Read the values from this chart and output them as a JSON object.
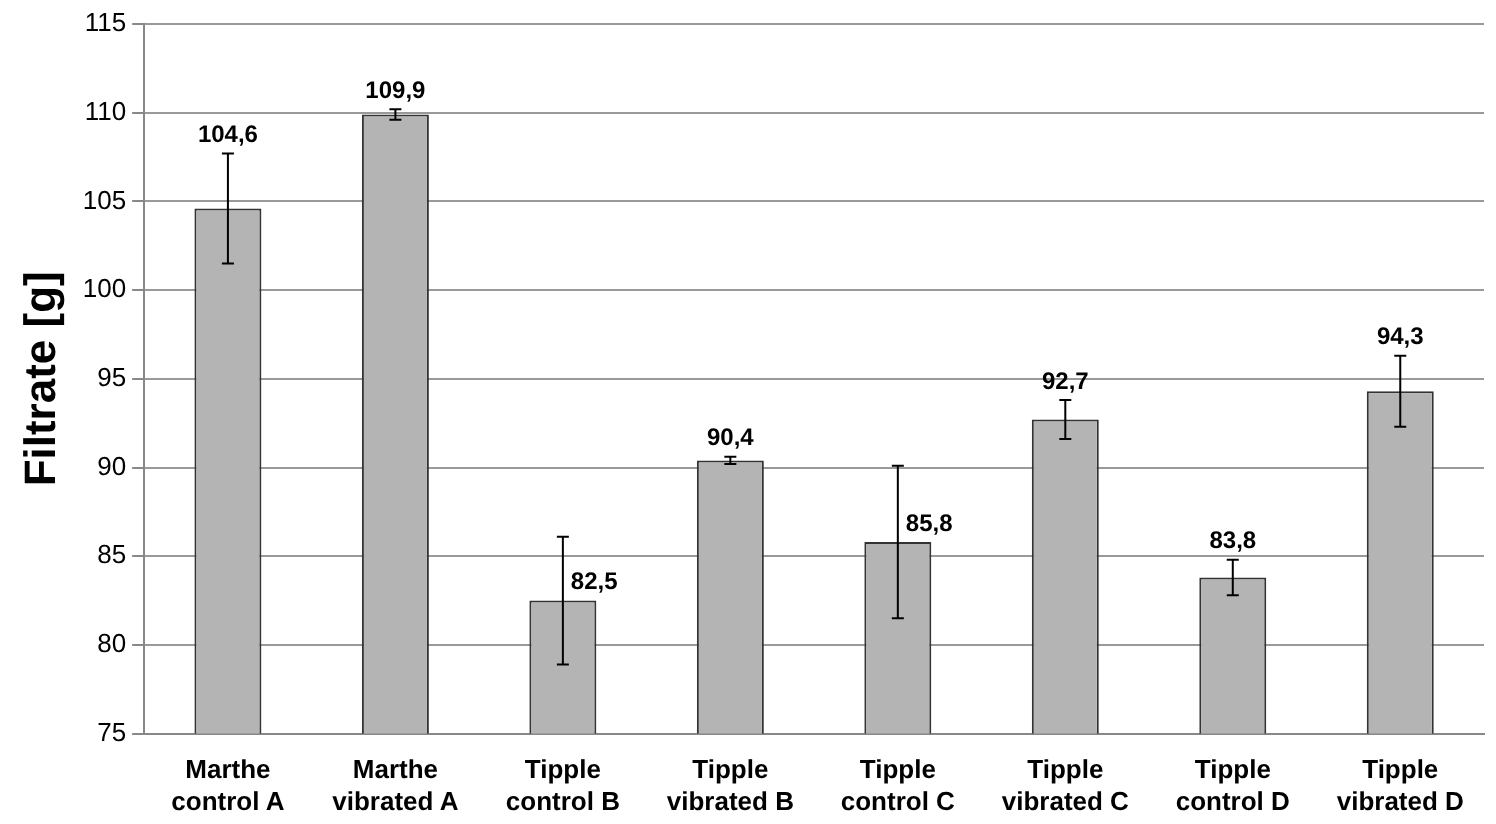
{
  "chart_data": {
    "type": "bar",
    "ylabel": "Filtrate [g]",
    "categories": [
      "Marthe control A",
      "Marthe vibrated A",
      "Tipple control B",
      "Tipple vibrated B",
      "Tipple control C",
      "Tipple vibrated C",
      "Tipple control D",
      "Tipple vibrated D"
    ],
    "values": [
      104.6,
      109.9,
      82.5,
      90.4,
      85.8,
      92.7,
      83.8,
      94.3
    ],
    "errors": [
      3.1,
      0.3,
      3.6,
      0.2,
      4.3,
      1.1,
      1.0,
      2.0
    ],
    "value_labels": [
      "104,6",
      "109,9",
      "82,5",
      "90,4",
      "85,8",
      "92,7",
      "83,8",
      "94,3"
    ],
    "color": "#b4b4b4",
    "ylim": [
      75,
      115
    ],
    "yticks": [
      75,
      80,
      85,
      90,
      95,
      100,
      105,
      110,
      115
    ],
    "grid": "y",
    "legend": false
  }
}
